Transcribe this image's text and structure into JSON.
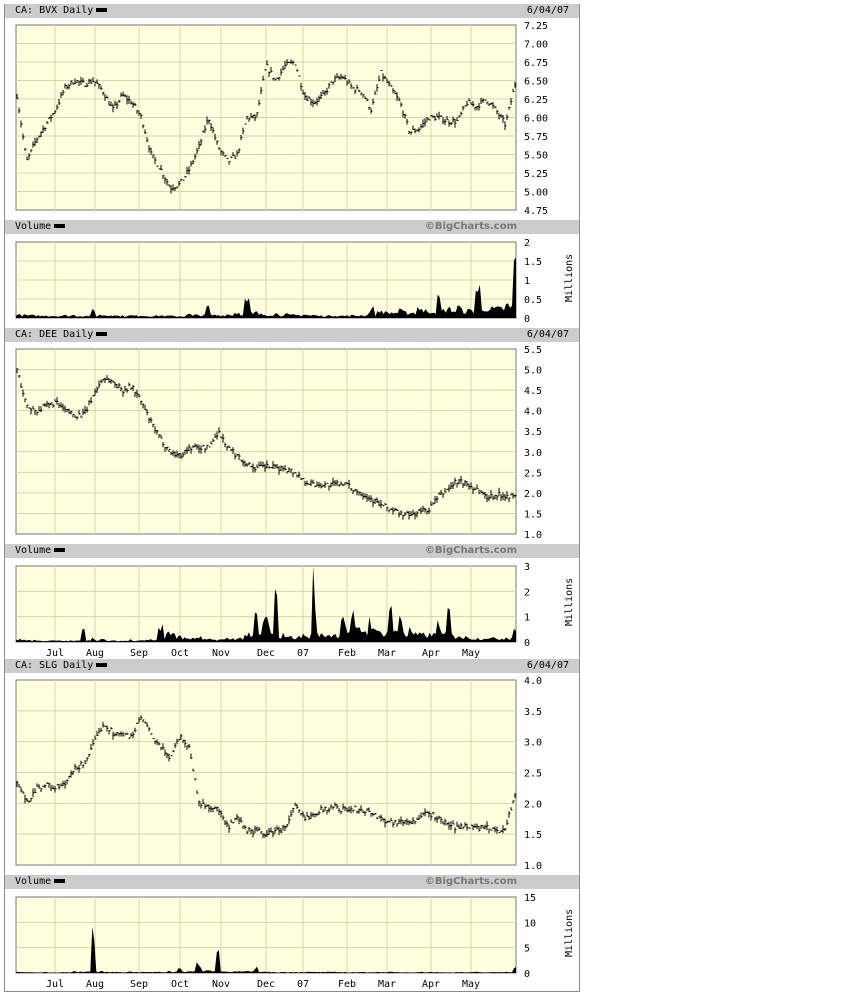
{
  "watermark": "©BigCharts.com",
  "date_label": "6/04/07",
  "months": [
    "Jul",
    "Aug",
    "Sep",
    "Oct",
    "Nov",
    "Dec",
    "07",
    "Feb",
    "Mar",
    "Apr",
    "May"
  ],
  "volume_unit": "Millions",
  "colors": {
    "plot_bg": "#ffffe0",
    "grid": "#d9d4a3",
    "header_bg": "#cccccc",
    "marks": "#000000"
  },
  "chart_data": [
    {
      "type": "ohlc-bar",
      "title": "CA: BVX Daily",
      "frequency": "weekly (approx.)",
      "x_range": [
        "2006-06",
        "2007-06-04"
      ],
      "ylim": [
        4.75,
        7.25
      ],
      "yticks": [
        "4.75",
        "5.00",
        "5.25",
        "5.50",
        "5.75",
        "6.00",
        "6.25",
        "6.50",
        "6.75",
        "7.00",
        "7.25"
      ],
      "grid": true,
      "close": [
        6.3,
        5.4,
        5.7,
        5.9,
        6.1,
        6.4,
        6.5,
        6.45,
        6.5,
        6.35,
        6.1,
        6.3,
        6.2,
        6.0,
        5.5,
        5.3,
        5.05,
        5.1,
        5.3,
        5.6,
        6.0,
        5.6,
        5.4,
        5.5,
        6.0,
        6.0,
        6.7,
        6.5,
        6.7,
        6.75,
        6.3,
        6.2,
        6.3,
        6.5,
        6.55,
        6.4,
        6.35,
        6.1,
        6.6,
        6.4,
        6.2,
        5.8,
        5.85,
        6.0,
        6.0,
        5.95,
        5.95,
        6.2,
        6.15,
        6.25,
        6.1,
        5.9,
        6.45
      ],
      "volume": {
        "title": "Volume",
        "type": "area",
        "ylim": [
          0,
          2
        ],
        "yticks": [
          "0",
          "0.5",
          "1",
          "1.5",
          "2"
        ],
        "values": [
          0.1,
          0.08,
          0.07,
          0.08,
          0.06,
          0.07,
          0.08,
          0.06,
          0.2,
          0.08,
          0.1,
          0.06,
          0.07,
          0.08,
          0.06,
          0.07,
          0.06,
          0.05,
          0.1,
          0.08,
          0.3,
          0.08,
          0.1,
          0.15,
          0.45,
          0.15,
          0.1,
          0.12,
          0.1,
          0.08,
          0.1,
          0.08,
          0.06,
          0.08,
          0.06,
          0.07,
          0.08,
          0.25,
          0.2,
          0.15,
          0.2,
          0.15,
          0.3,
          0.2,
          0.5,
          0.25,
          0.3,
          0.2,
          0.8,
          0.3,
          0.25,
          0.35,
          1.5
        ]
      }
    },
    {
      "type": "ohlc-bar",
      "title": "CA: DEE Daily",
      "frequency": "weekly (approx.)",
      "x_range": [
        "2006-06",
        "2007-06-04"
      ],
      "ylim": [
        1.0,
        5.5
      ],
      "yticks": [
        "1.0",
        "1.5",
        "2.0",
        "2.5",
        "3.0",
        "3.5",
        "4.0",
        "4.5",
        "5.0",
        "5.5"
      ],
      "grid": true,
      "close": [
        5.0,
        4.1,
        4.0,
        4.1,
        4.2,
        4.0,
        3.9,
        3.9,
        4.4,
        4.8,
        4.7,
        4.5,
        4.6,
        4.2,
        3.7,
        3.3,
        3.0,
        2.9,
        3.1,
        3.1,
        3.1,
        3.5,
        3.1,
        2.9,
        2.7,
        2.6,
        2.65,
        2.6,
        2.6,
        2.5,
        2.3,
        2.2,
        2.2,
        2.2,
        2.25,
        2.1,
        2.0,
        1.85,
        1.7,
        1.6,
        1.5,
        1.45,
        1.55,
        1.6,
        1.9,
        2.1,
        2.3,
        2.2,
        2.1,
        1.9,
        1.95,
        1.95,
        1.9
      ],
      "volume": {
        "title": "Volume",
        "type": "area",
        "ylim": [
          0,
          3
        ],
        "yticks": [
          "0",
          "1",
          "2",
          "3"
        ],
        "values": [
          0.1,
          0.1,
          0.08,
          0.05,
          0.06,
          0.05,
          0.05,
          0.9,
          0.15,
          0.1,
          0.05,
          0.05,
          0.1,
          0.08,
          0.1,
          0.6,
          0.5,
          0.3,
          0.15,
          0.2,
          0.1,
          0.1,
          0.15,
          0.15,
          0.3,
          1.0,
          0.9,
          1.7,
          0.3,
          0.2,
          0.3,
          2.6,
          0.3,
          0.3,
          1.1,
          1.0,
          0.5,
          0.9,
          0.4,
          1.7,
          1.1,
          0.5,
          0.3,
          0.3,
          1.0,
          1.3,
          0.3,
          0.2,
          0.15,
          0.2,
          0.15,
          0.2,
          0.6
        ]
      }
    },
    {
      "type": "ohlc-bar",
      "title": "CA: SLG Daily",
      "frequency": "weekly (approx.)",
      "x_range": [
        "2006-06",
        "2007-06-04"
      ],
      "ylim": [
        1.0,
        4.0
      ],
      "yticks": [
        "1.0",
        "1.5",
        "2.0",
        "2.5",
        "3.0",
        "3.5",
        "4.0"
      ],
      "grid": true,
      "close": [
        2.35,
        2.0,
        2.25,
        2.3,
        2.25,
        2.3,
        2.55,
        2.65,
        2.95,
        3.3,
        3.15,
        3.1,
        3.1,
        3.4,
        3.1,
        2.9,
        2.75,
        3.1,
        2.9,
        2.0,
        1.95,
        1.9,
        1.6,
        1.75,
        1.55,
        1.55,
        1.5,
        1.55,
        1.6,
        1.95,
        1.75,
        1.85,
        1.9,
        1.95,
        1.9,
        1.9,
        1.9,
        1.85,
        1.75,
        1.7,
        1.7,
        1.7,
        1.75,
        1.85,
        1.75,
        1.65,
        1.6,
        1.65,
        1.6,
        1.6,
        1.55,
        1.6,
        2.15
      ],
      "volume": {
        "title": "Volume",
        "type": "area",
        "ylim": [
          0,
          15
        ],
        "yticks": [
          "0",
          "5",
          "10",
          "15"
        ],
        "values": [
          0.2,
          0.2,
          0.15,
          0.2,
          0.1,
          0.2,
          0.3,
          0.3,
          9.0,
          0.3,
          0.2,
          0.2,
          0.3,
          0.2,
          0.2,
          0.2,
          0.4,
          1.5,
          0.3,
          2.0,
          0.5,
          4.7,
          0.4,
          0.3,
          0.3,
          1.0,
          0.3,
          0.2,
          0.2,
          0.2,
          0.2,
          0.2,
          0.2,
          0.2,
          0.2,
          0.15,
          0.2,
          0.2,
          0.2,
          0.2,
          0.15,
          0.2,
          0.2,
          0.2,
          0.15,
          0.15,
          0.2,
          0.15,
          0.2,
          0.15,
          0.2,
          0.3,
          1.0
        ]
      }
    }
  ]
}
